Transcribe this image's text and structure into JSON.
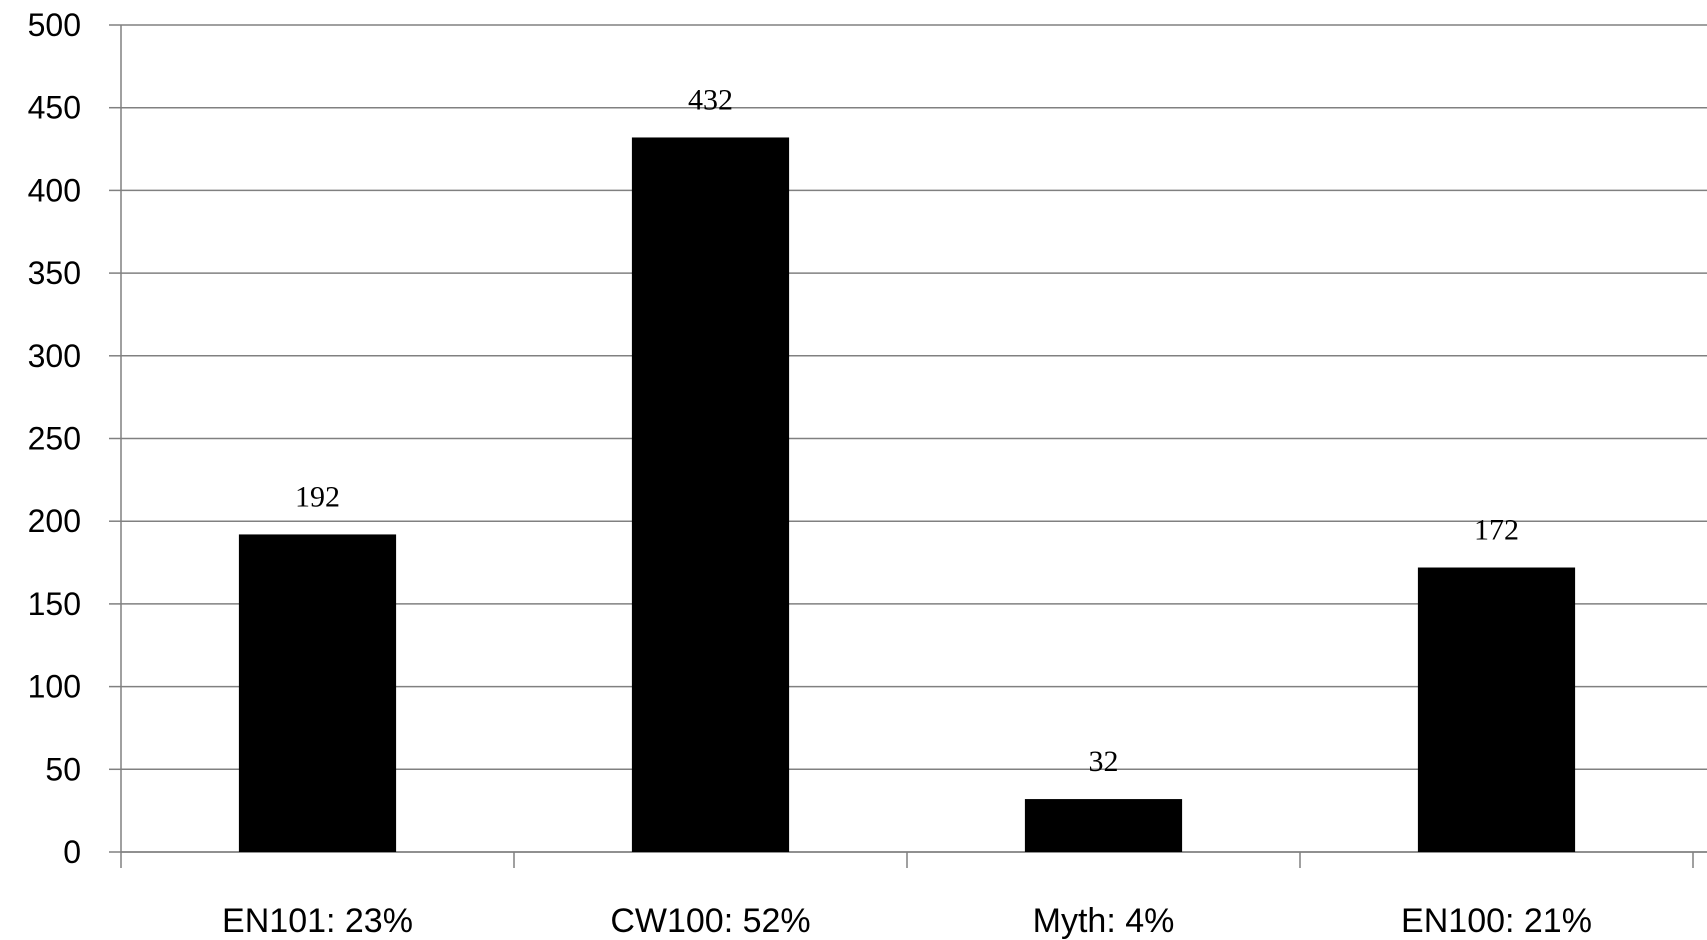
{
  "chart_data": {
    "type": "bar",
    "categories": [
      "EN101: 23%",
      "CW100: 52%",
      "Myth: 4%",
      "EN100: 21%"
    ],
    "values": [
      192,
      432,
      32,
      172
    ],
    "data_labels": [
      "192",
      "432",
      "32",
      "172"
    ],
    "title": "",
    "xlabel": "",
    "ylabel": "",
    "ylim": [
      0,
      500
    ],
    "yticks": [
      0,
      50,
      100,
      150,
      200,
      250,
      300,
      350,
      400,
      450,
      500
    ],
    "grid": true,
    "legend": "none",
    "bar_color": "#000000",
    "grid_color": "#808080"
  }
}
